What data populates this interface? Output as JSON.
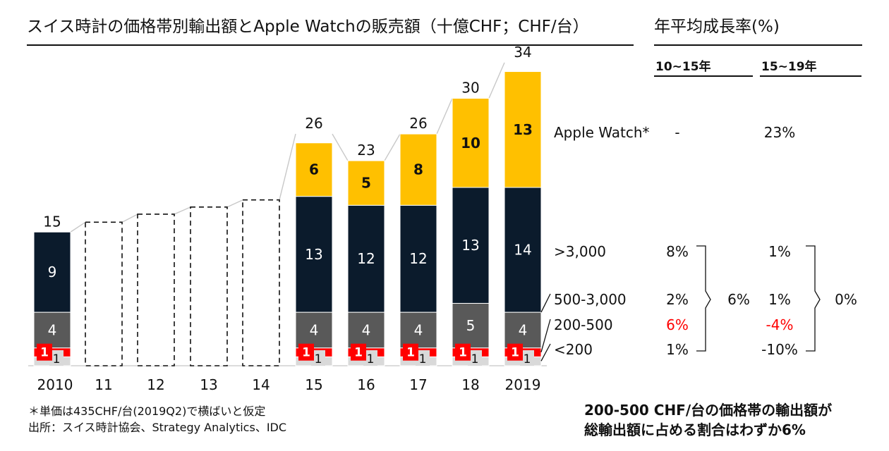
{
  "title": "スイス時計の価格帯別輸出額とApple Watchの販売額（十億CHF；CHF/台）",
  "cagr": {
    "title": "年平均成長率(%)",
    "col1": "10~15年",
    "col2": "15~19年",
    "rows": [
      {
        "label": "Apple Watch*",
        "v1": "-",
        "v2": "23%"
      },
      {
        "label": ">3,000",
        "v1": "8%",
        "v2": "1%"
      },
      {
        "label": "500-3,000",
        "v1": "2%",
        "v2": "1%"
      },
      {
        "label": "200-500",
        "v1": "6%",
        "v2": "-4%"
      },
      {
        "label": "<200",
        "v1": "1%",
        "v2": "-10%"
      }
    ],
    "group1": "6%",
    "group2": "0%"
  },
  "footnote": {
    "line1": "＊単価は435CHF/台(2019Q2)で横ばいと仮定",
    "line2": "出所：スイス時計協会、Strategy Analytics、IDC"
  },
  "callout": {
    "line1": "200-500 CHF/台の価格帯の輸出額が",
    "line2": "総輸出額に占める割合はわずか6%"
  },
  "colors": {
    "apple_watch": "#FFC000",
    "over_3000": "#0B1B2C",
    "500_3000": "#595959",
    "200_500": "#FF0000",
    "under_200": "#D9D9D9",
    "negative": "#FF0000"
  },
  "chart_data": {
    "type": "bar",
    "stacked": true,
    "categories": [
      "2010",
      "11",
      "12",
      "13",
      "14",
      "15",
      "16",
      "17",
      "18",
      "2019"
    ],
    "totals": [
      15,
      null,
      null,
      null,
      null,
      26,
      23,
      26,
      30,
      34
    ],
    "estimated_outline_totals": [
      null,
      16.1,
      17.0,
      17.8,
      18.6,
      null,
      null,
      null,
      null,
      null
    ],
    "series": [
      {
        "name": "<200",
        "values": [
          1,
          null,
          null,
          null,
          null,
          1,
          1,
          1,
          1,
          1
        ]
      },
      {
        "name": "200-500",
        "values": [
          1,
          null,
          null,
          null,
          null,
          1,
          1,
          1,
          1,
          1
        ]
      },
      {
        "name": "500-3,000",
        "values": [
          4,
          null,
          null,
          null,
          null,
          4,
          4,
          4,
          5,
          4
        ]
      },
      {
        "name": ">3,000",
        "values": [
          9,
          null,
          null,
          null,
          null,
          13,
          12,
          12,
          13,
          14
        ]
      },
      {
        "name": "Apple Watch*",
        "values": [
          null,
          null,
          null,
          null,
          null,
          6,
          5,
          8,
          10,
          13
        ]
      }
    ],
    "ylim": [
      0,
      34
    ]
  }
}
